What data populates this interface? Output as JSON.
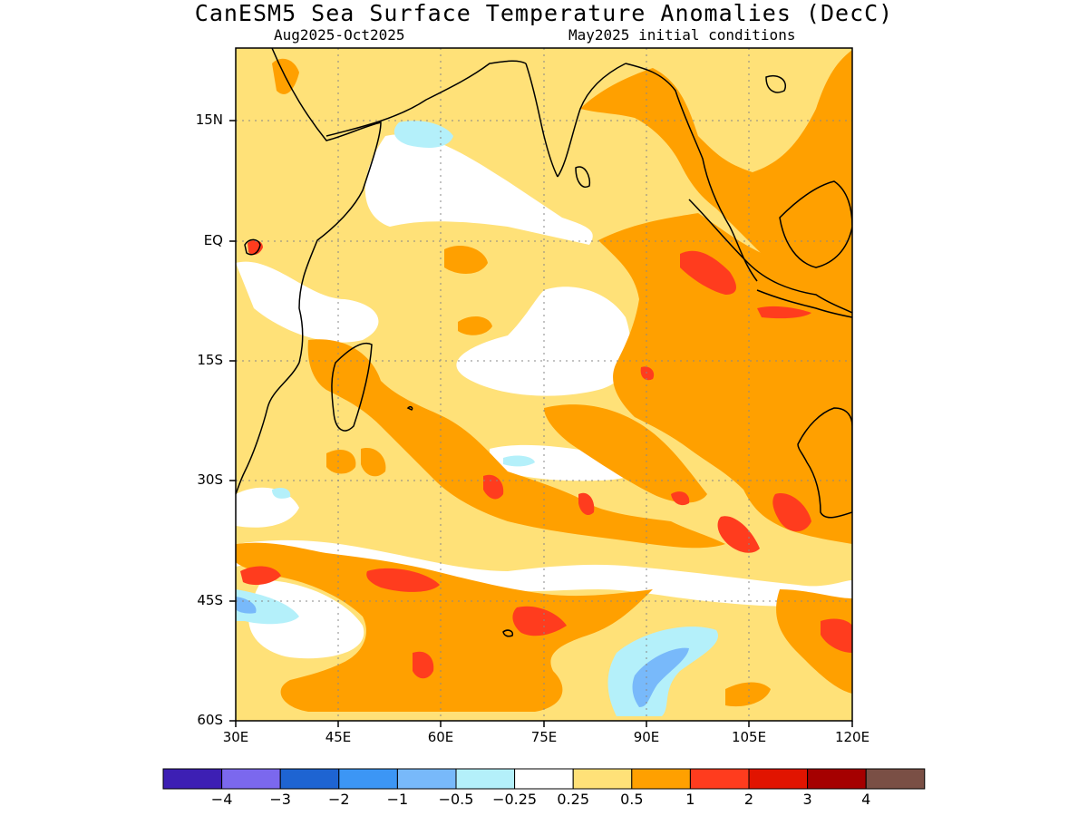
{
  "title": "CanESM5 Sea Surface Temperature Anomalies (DecC)",
  "subtitle_left": "Aug2025-Oct2025",
  "subtitle_right": "May2025 initial conditions",
  "y_ticks": [
    "15N",
    "EQ",
    "15S",
    "30S",
    "45S",
    "60S"
  ],
  "x_ticks": [
    "30E",
    "45E",
    "60E",
    "75E",
    "90E",
    "105E",
    "120E"
  ],
  "colorbar": {
    "colors": [
      "#3d1fb4",
      "#7b68ee",
      "#1e64d2",
      "#3c96f5",
      "#78b9fa",
      "#b4f0fa",
      "#ffffff",
      "#ffe178",
      "#ffa000",
      "#ff3c1e",
      "#e11400",
      "#a50000",
      "#7a4f45"
    ],
    "labels": [
      "-4",
      "-3",
      "-2",
      "-1",
      "-0.5",
      "-0.25",
      "0.25",
      "0.5",
      "1",
      "2",
      "3",
      "4"
    ]
  }
}
